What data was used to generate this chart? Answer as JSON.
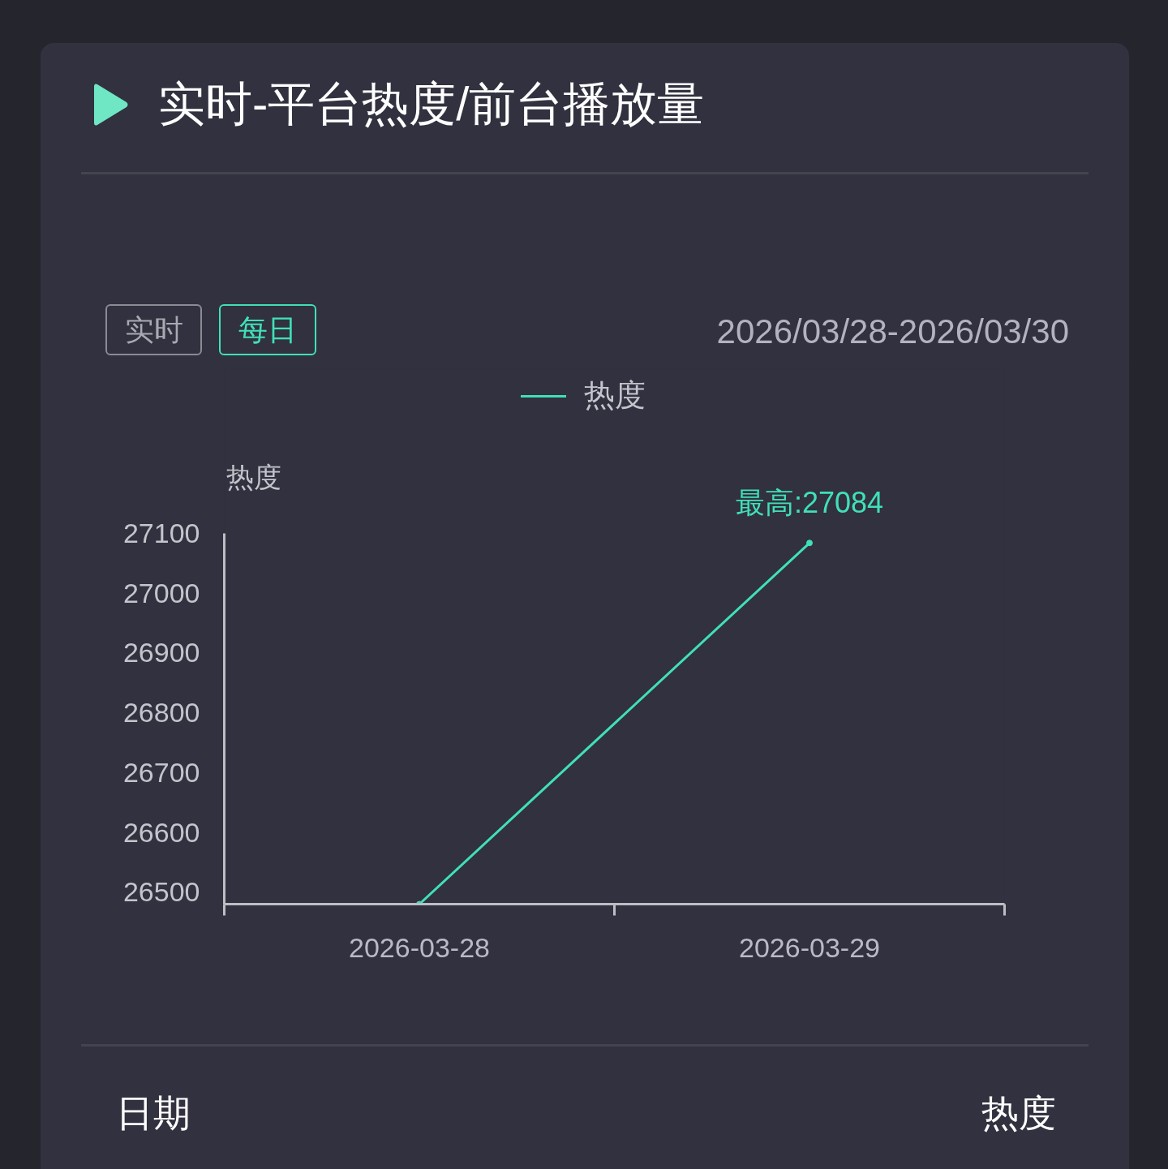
{
  "chart_data": {
    "type": "line",
    "title": "实时-平台热度/前台播放量",
    "ylabel": "热度",
    "categories": [
      "2026-03-28",
      "2026-03-29"
    ],
    "series": [
      {
        "name": "热度",
        "color": "#40e0b8",
        "values": [
          26480,
          27084
        ]
      }
    ],
    "ylim": [
      26480,
      27100
    ],
    "yticks": [
      26500,
      26600,
      26700,
      26800,
      26900,
      27000,
      27100
    ],
    "grid": false,
    "legend": "top",
    "marker": "circle",
    "line_style": "solid",
    "annotations": [
      "实时",
      "每日",
      "2026/03/28-2026/03/30",
      {
        "text": "最高:27084",
        "x": "2026-03-29",
        "y": 27084
      },
      "日期",
      "热度"
    ]
  }
}
